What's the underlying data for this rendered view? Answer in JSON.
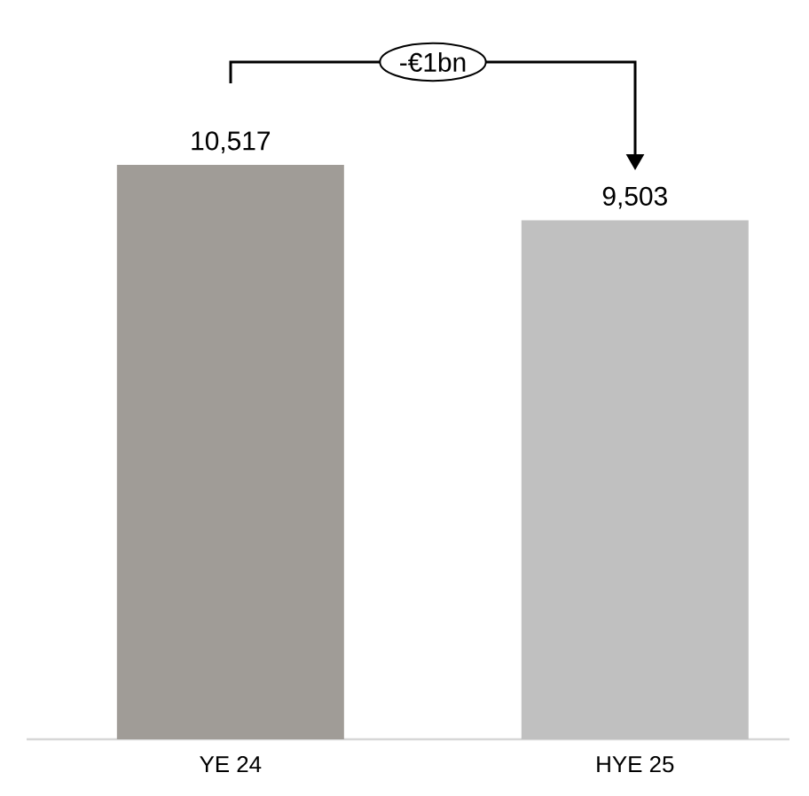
{
  "chart_data": {
    "type": "bar",
    "categories": [
      "YE 24",
      "HYE 25"
    ],
    "values": [
      10517,
      9503
    ],
    "colors": [
      "#a09c97",
      "#c0c0c0"
    ],
    "value_labels": [
      "10,517",
      "9,503"
    ],
    "annotations": [
      "-€1bn"
    ]
  }
}
